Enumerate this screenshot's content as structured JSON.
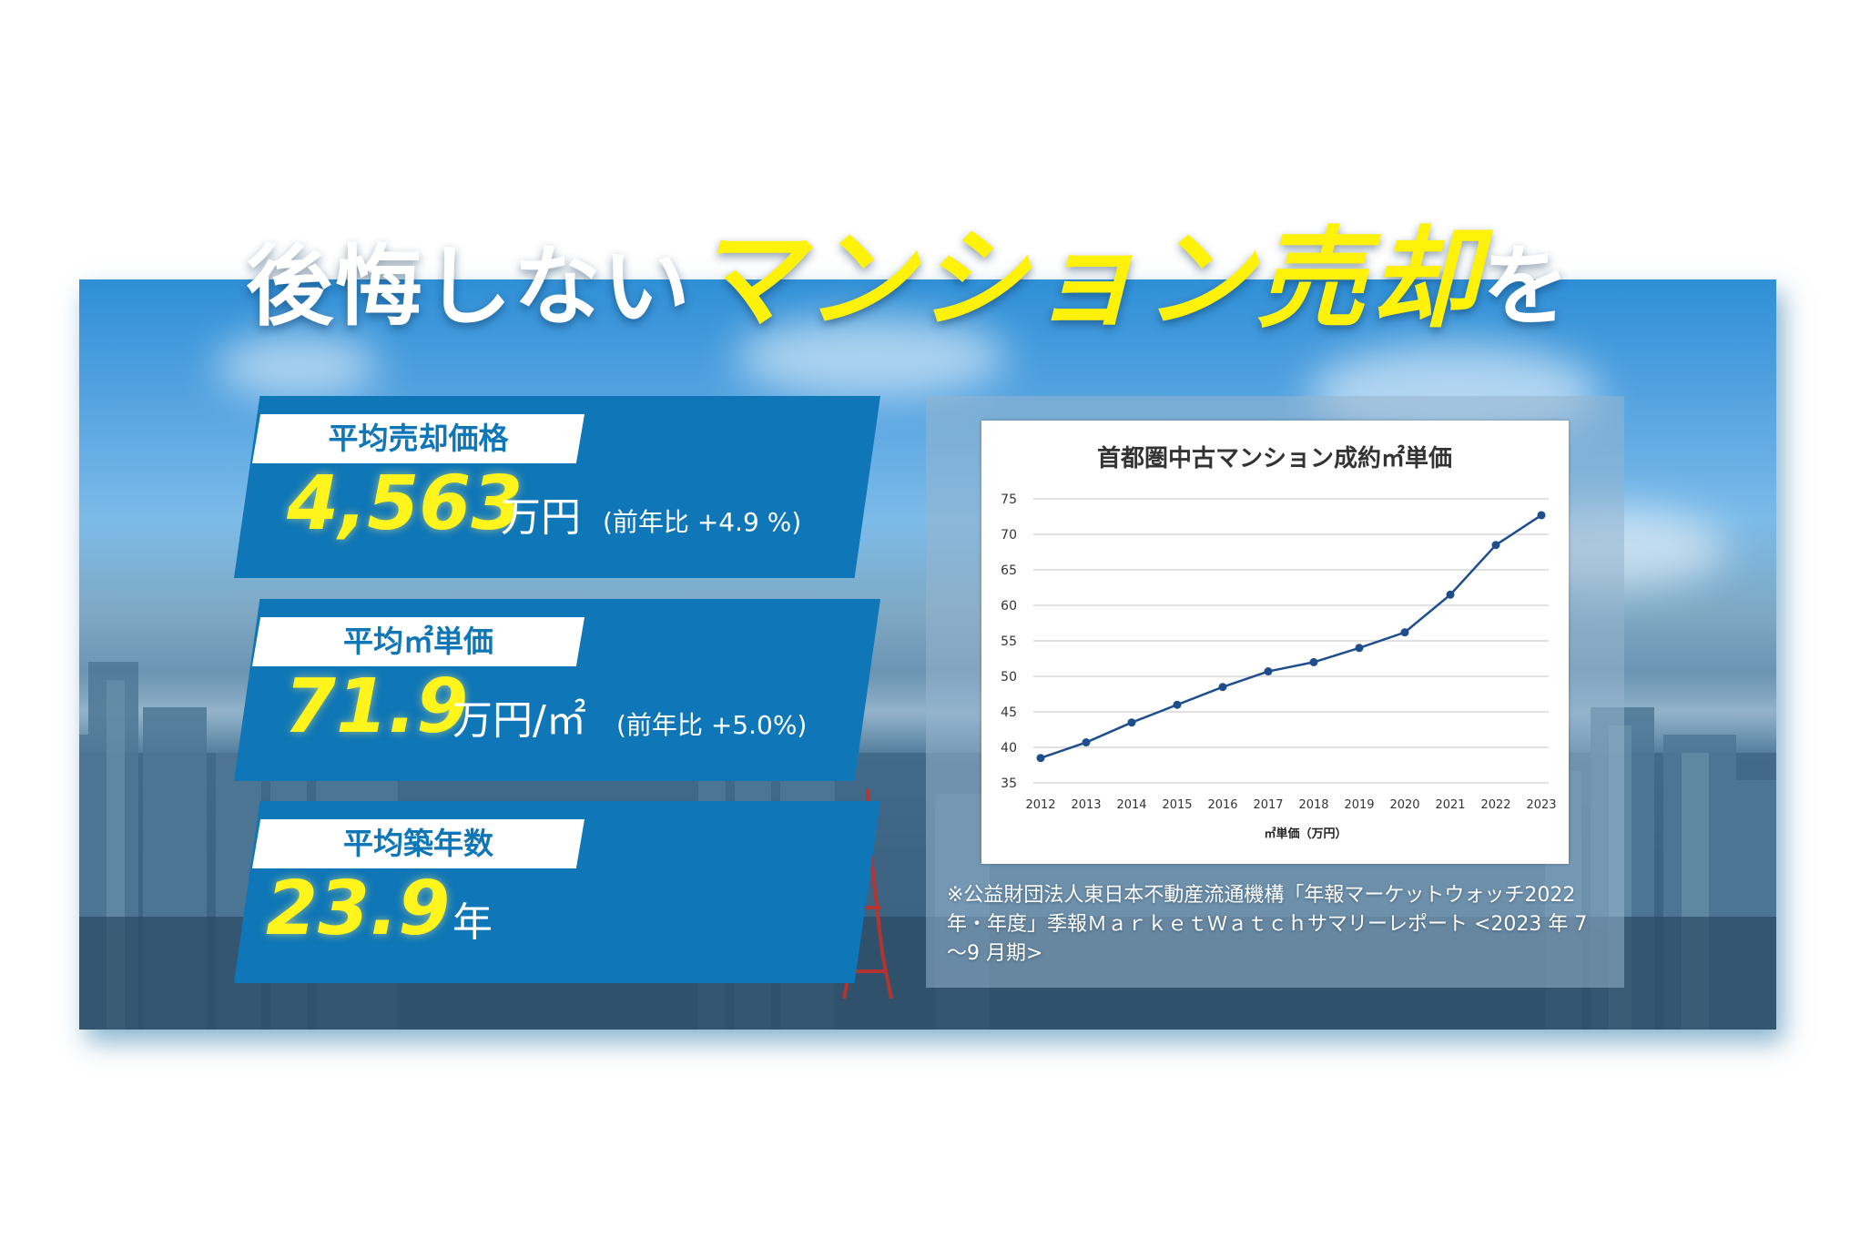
{
  "headline": {
    "prefix": "後悔しない",
    "highlight": "マンション売却",
    "suffix": "を"
  },
  "stats": [
    {
      "label": "平均売却価格",
      "value": "4,563",
      "unit": "万円",
      "note": "(前年比 +4.9 %)"
    },
    {
      "label": "平均㎡単価",
      "value": "71.9",
      "unit": "万円/㎡",
      "note": "(前年比 +5.0%)"
    },
    {
      "label": "平均築年数",
      "value": "23.9",
      "unit": "年",
      "note": ""
    }
  ],
  "source_note": "※公益財団法人東日本不動産流通機構「年報マーケットウォッチ2022年・年度」季報ＭａｒｋｅｔＷａｔｃｈサマリーレポート <2023 年 7～9 月期>",
  "colors": {
    "card_blue": "#0f76b7",
    "highlight_yellow": "#fff20a",
    "line_blue": "#1e4e8c"
  },
  "chart_data": {
    "type": "line",
    "title": "首都圏中古マンション成約㎡単価",
    "xlabel": "㎡単価（万円）",
    "ylabel": "",
    "categories": [
      "2012",
      "2013",
      "2014",
      "2015",
      "2016",
      "2017",
      "2018",
      "2019",
      "2020",
      "2021",
      "2022",
      "2023"
    ],
    "series": [
      {
        "name": "",
        "values": [
          38.5,
          40.7,
          43.5,
          46.0,
          48.5,
          50.7,
          52.0,
          54.0,
          56.2,
          61.5,
          68.5,
          72.7
        ]
      }
    ],
    "ylim": [
      35,
      75
    ],
    "yticks": [
      35,
      40,
      45,
      50,
      55,
      60,
      65,
      70,
      75
    ],
    "grid": true,
    "legend": "none"
  }
}
